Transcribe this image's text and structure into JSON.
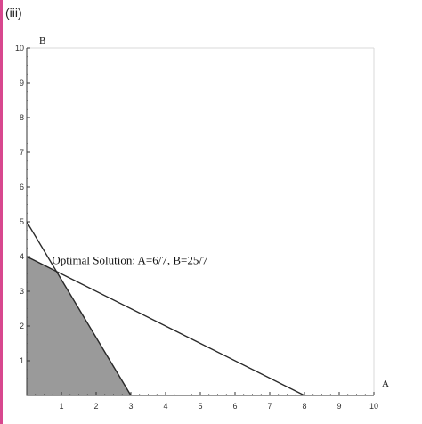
{
  "part_label": "(iii)",
  "chart_data": {
    "type": "area",
    "title": "",
    "xlabel": "A",
    "ylabel": "B",
    "xlim": [
      0,
      10
    ],
    "ylim": [
      0,
      10
    ],
    "x_ticks": [
      1,
      2,
      3,
      4,
      5,
      6,
      7,
      8,
      9,
      10
    ],
    "y_ticks": [
      1,
      2,
      3,
      4,
      5,
      6,
      7,
      8,
      9,
      10
    ],
    "minor_ticks_per_unit": 4,
    "grid": false,
    "constraint_lines": [
      {
        "x": [
          0,
          3
        ],
        "y": [
          5,
          0
        ]
      },
      {
        "x": [
          0,
          8
        ],
        "y": [
          4,
          0
        ]
      }
    ],
    "feasible_region": {
      "x": [
        0,
        0,
        0.857,
        3
      ],
      "y": [
        0,
        4,
        3.571,
        0
      ],
      "fill": "#9a9a9a"
    },
    "annotation": {
      "text": "Optimal Solution: A=6/7, B=25/7",
      "x": 0.857,
      "y": 3.571
    }
  }
}
